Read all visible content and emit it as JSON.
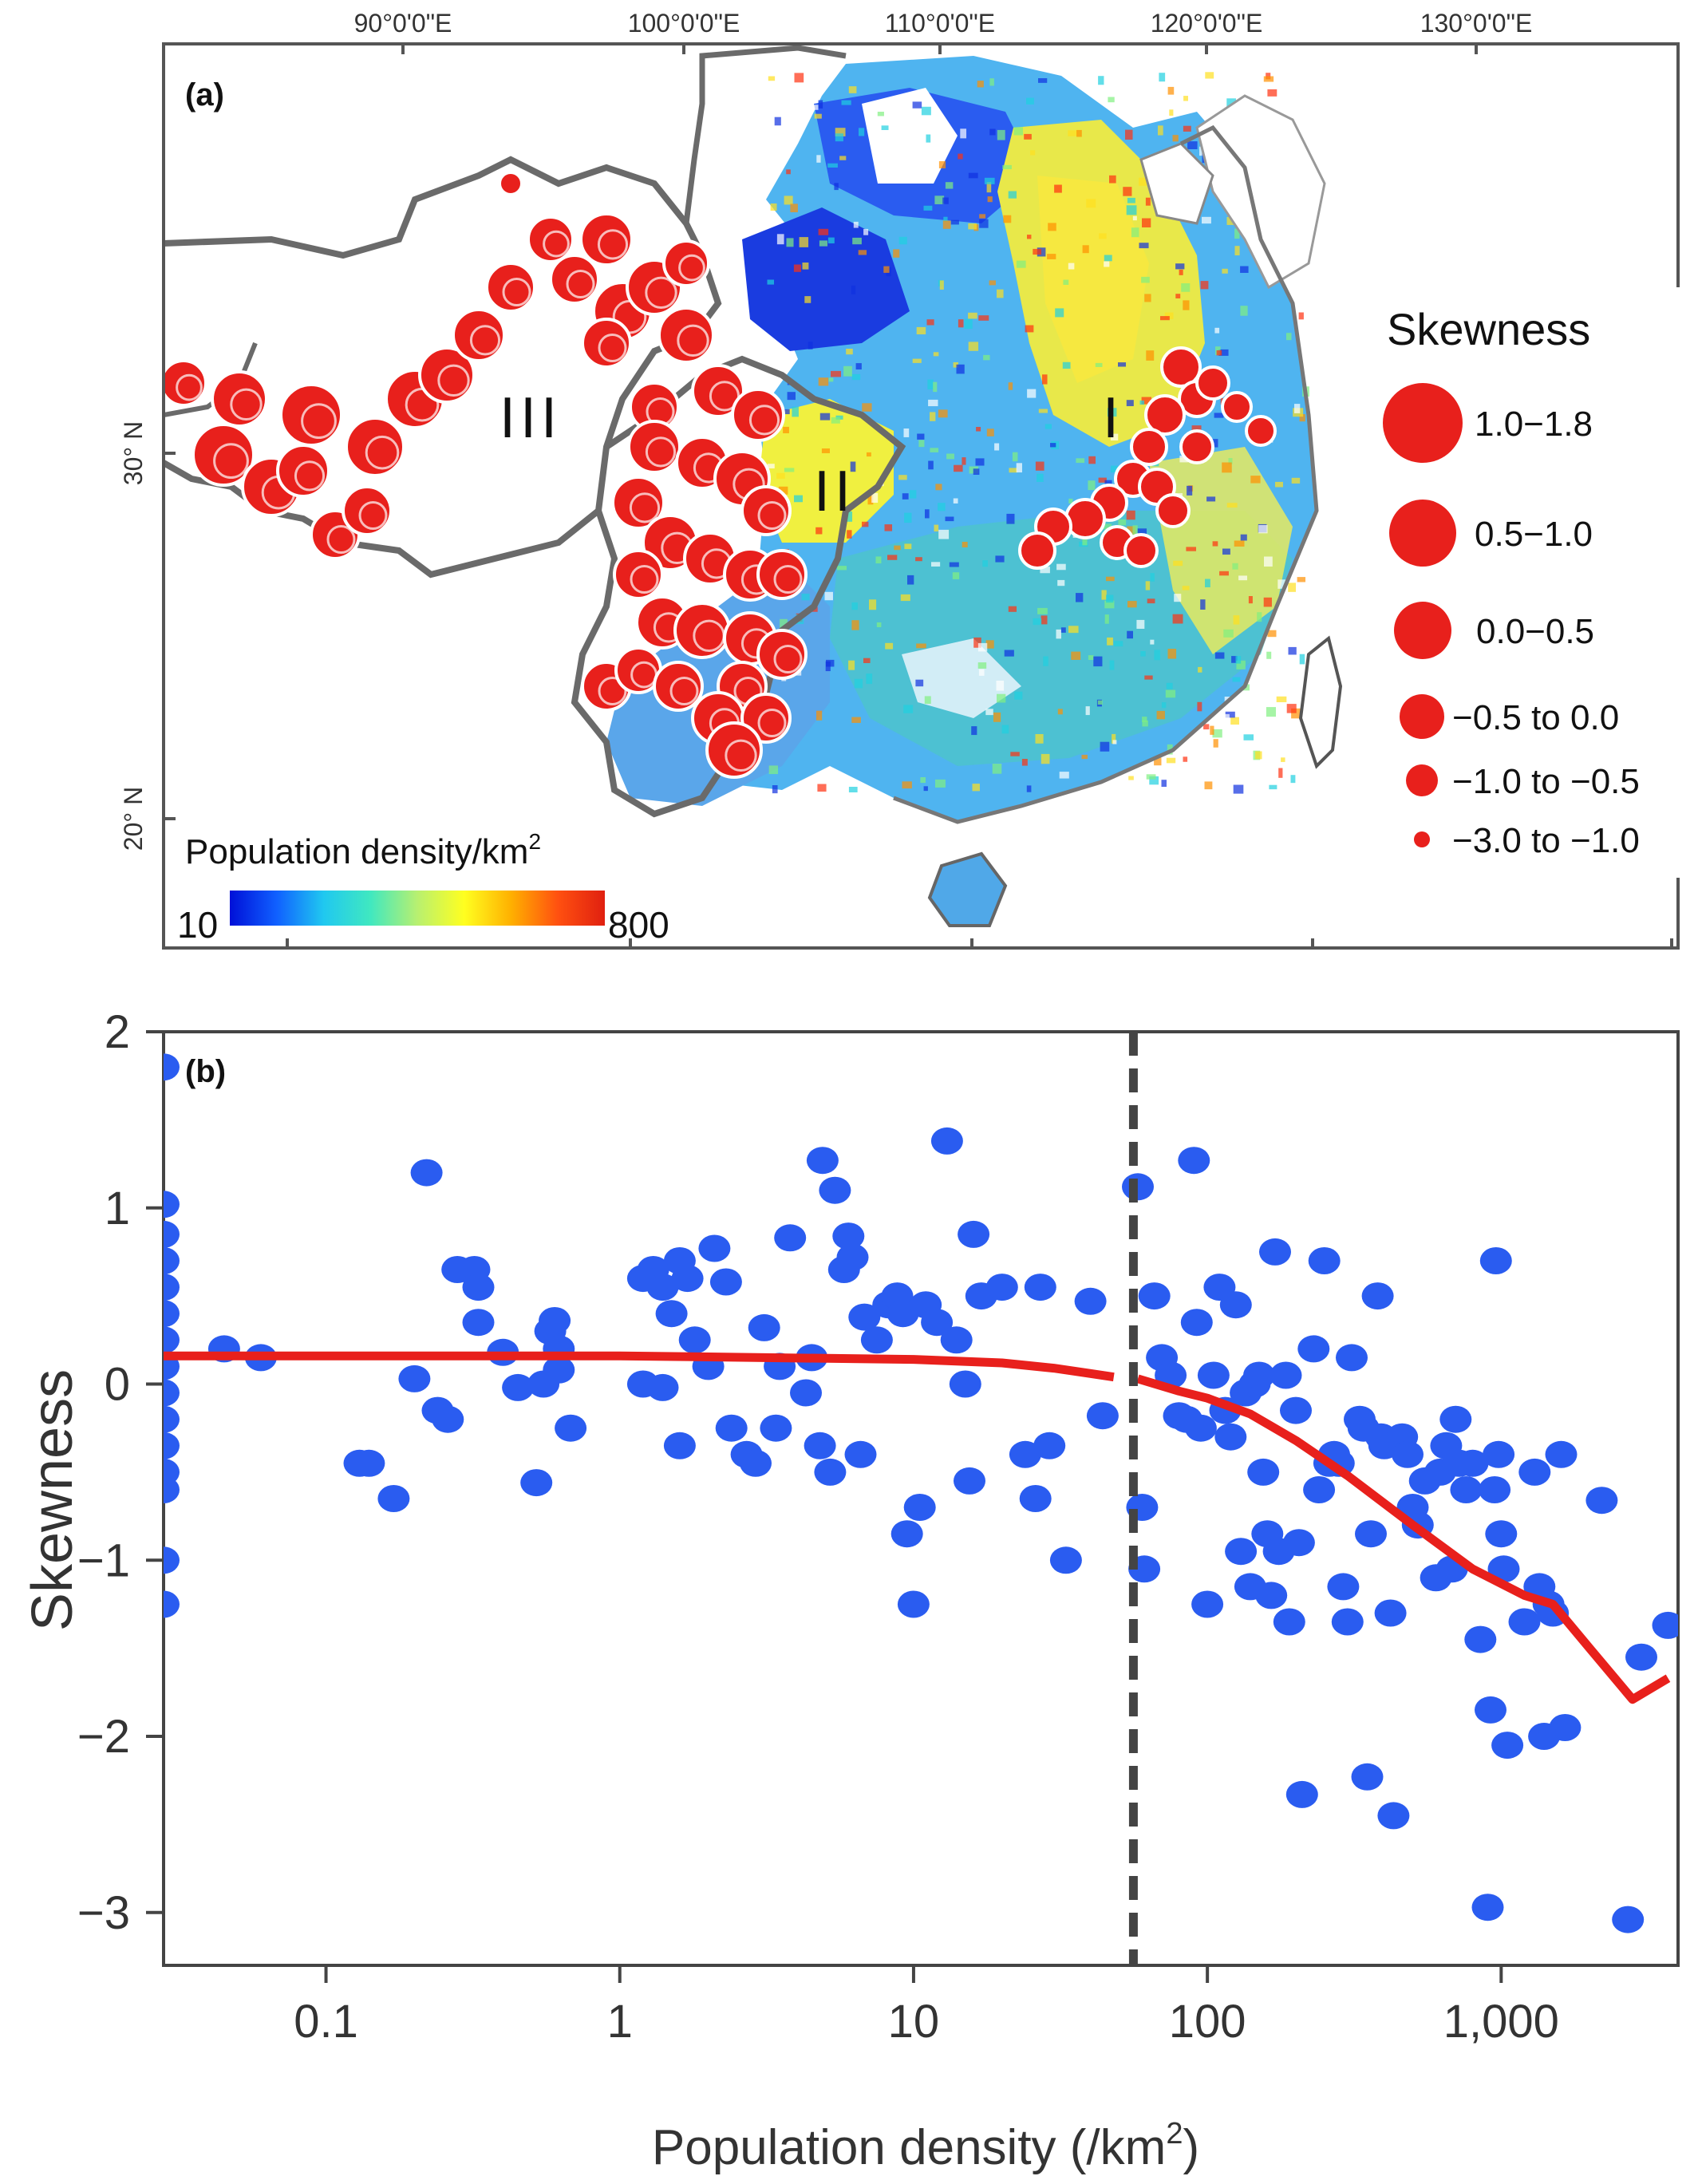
{
  "panel_a": {
    "label": "(a)",
    "lon_labels": [
      "90°0'0\"E",
      "100°0'0\"E",
      "110°0'0\"E",
      "120°0'0\"E",
      "130°0'0\"E"
    ],
    "lat_labels": [
      "30° N",
      "20° N"
    ],
    "region_labels": [
      "III",
      "II",
      "I"
    ],
    "colorbar": {
      "title": "Population density/km",
      "title_sup": "2",
      "min_label": "10",
      "max_label": "800",
      "colors": [
        "#0010d8",
        "#1060ff",
        "#20c8f0",
        "#40e8c0",
        "#b8f070",
        "#ffff20",
        "#ffb000",
        "#ff5010",
        "#e02010"
      ]
    },
    "legend": {
      "title": "Skewness",
      "entries": [
        "1.0−1.8",
        "0.5−1.0",
        "0.0−0.5",
        "−0.5 to  0.0",
        "−1.0 to −0.5",
        "−3.0 to −1.0"
      ]
    },
    "marker_color": "#e8201c"
  },
  "chart_data": {
    "type": "scatter",
    "label": "(b)",
    "xlabel": "Population density (/km",
    "xlabel_sup": "2",
    "xlabel_close": ")",
    "ylabel": "Skewness",
    "x_scale": "log",
    "xlim": [
      0.028,
      4000
    ],
    "ylim": [
      -3.3,
      2
    ],
    "x_tick_values": [
      0.1,
      1,
      10,
      100,
      1000
    ],
    "x_tick_labels": [
      "0.1",
      "1",
      "10",
      "100",
      "1,000"
    ],
    "y_tick_values": [
      2,
      1,
      0,
      -1,
      -2,
      -3
    ],
    "y_tick_labels": [
      "2",
      "1",
      "0",
      "−1",
      "−2",
      "−3"
    ],
    "threshold_x": 56,
    "point_color": "#2a5cf0",
    "line_color": "#e8201c",
    "grid": false,
    "points": [
      [
        0.028,
        1.8
      ],
      [
        0.028,
        1.02
      ],
      [
        0.028,
        0.85
      ],
      [
        0.028,
        0.7
      ],
      [
        0.028,
        0.55
      ],
      [
        0.028,
        0.4
      ],
      [
        0.028,
        0.25
      ],
      [
        0.028,
        0.1
      ],
      [
        0.028,
        -0.05
      ],
      [
        0.028,
        -0.2
      ],
      [
        0.028,
        -0.35
      ],
      [
        0.028,
        -0.5
      ],
      [
        0.028,
        -0.6
      ],
      [
        0.028,
        -1.0
      ],
      [
        0.028,
        -1.25
      ],
      [
        0.045,
        0.2
      ],
      [
        0.06,
        0.15
      ],
      [
        0.13,
        -0.45
      ],
      [
        0.14,
        -0.45
      ],
      [
        0.17,
        -0.65
      ],
      [
        0.22,
        1.2
      ],
      [
        0.2,
        0.03
      ],
      [
        0.24,
        -0.15
      ],
      [
        0.26,
        -0.2
      ],
      [
        0.28,
        0.65
      ],
      [
        0.32,
        0.65
      ],
      [
        0.33,
        0.55
      ],
      [
        0.33,
        0.35
      ],
      [
        0.4,
        0.18
      ],
      [
        0.45,
        -0.02
      ],
      [
        0.52,
        -0.56
      ],
      [
        0.55,
        0.0
      ],
      [
        0.58,
        0.3
      ],
      [
        0.6,
        0.36
      ],
      [
        0.62,
        0.2
      ],
      [
        0.62,
        0.08
      ],
      [
        0.68,
        -0.25
      ],
      [
        1.2,
        0.6
      ],
      [
        1.3,
        0.65
      ],
      [
        1.4,
        0.55
      ],
      [
        1.5,
        0.4
      ],
      [
        1.6,
        0.7
      ],
      [
        1.7,
        0.6
      ],
      [
        1.2,
        0.0
      ],
      [
        1.4,
        -0.02
      ],
      [
        1.6,
        -0.35
      ],
      [
        1.8,
        0.25
      ],
      [
        2.0,
        0.1
      ],
      [
        2.1,
        0.77
      ],
      [
        2.3,
        0.58
      ],
      [
        2.4,
        -0.25
      ],
      [
        2.7,
        -0.4
      ],
      [
        2.9,
        -0.45
      ],
      [
        3.1,
        0.32
      ],
      [
        3.4,
        -0.25
      ],
      [
        3.5,
        0.1
      ],
      [
        3.8,
        0.83
      ],
      [
        4.3,
        -0.05
      ],
      [
        4.5,
        0.15
      ],
      [
        4.8,
        -0.35
      ],
      [
        4.9,
        1.27
      ],
      [
        5.2,
        -0.5
      ],
      [
        5.4,
        1.1
      ],
      [
        5.8,
        0.65
      ],
      [
        6.0,
        0.84
      ],
      [
        6.2,
        0.72
      ],
      [
        6.6,
        -0.4
      ],
      [
        6.8,
        0.38
      ],
      [
        7.5,
        0.25
      ],
      [
        8.2,
        0.45
      ],
      [
        8.8,
        0.5
      ],
      [
        9.2,
        0.4
      ],
      [
        9.5,
        -0.85
      ],
      [
        10,
        -1.25
      ],
      [
        10.5,
        -0.7
      ],
      [
        11,
        0.45
      ],
      [
        12,
        0.35
      ],
      [
        13,
        1.38
      ],
      [
        14,
        0.25
      ],
      [
        15,
        0.0
      ],
      [
        15.5,
        -0.55
      ],
      [
        16,
        0.85
      ],
      [
        17,
        0.5
      ],
      [
        20,
        0.55
      ],
      [
        24,
        -0.4
      ],
      [
        26,
        -0.65
      ],
      [
        27,
        0.55
      ],
      [
        29,
        -0.35
      ],
      [
        33,
        -1.0
      ],
      [
        40,
        0.47
      ],
      [
        44,
        -0.18
      ],
      [
        58,
        1.12
      ],
      [
        60,
        -0.7
      ],
      [
        61,
        -1.05
      ],
      [
        66,
        0.5
      ],
      [
        70,
        0.15
      ],
      [
        75,
        0.05
      ],
      [
        80,
        -0.18
      ],
      [
        85,
        -0.2
      ],
      [
        90,
        1.27
      ],
      [
        92,
        0.35
      ],
      [
        95,
        -0.25
      ],
      [
        100,
        -1.25
      ],
      [
        105,
        0.05
      ],
      [
        110,
        0.55
      ],
      [
        115,
        -0.15
      ],
      [
        120,
        -0.3
      ],
      [
        125,
        0.45
      ],
      [
        130,
        -0.95
      ],
      [
        135,
        -0.05
      ],
      [
        140,
        -1.15
      ],
      [
        145,
        0.0
      ],
      [
        150,
        0.05
      ],
      [
        155,
        -0.5
      ],
      [
        160,
        -0.85
      ],
      [
        165,
        -1.2
      ],
      [
        170,
        0.75
      ],
      [
        175,
        -0.95
      ],
      [
        185,
        0.05
      ],
      [
        190,
        -1.35
      ],
      [
        200,
        -0.15
      ],
      [
        205,
        -0.9
      ],
      [
        210,
        -2.33
      ],
      [
        230,
        0.2
      ],
      [
        240,
        -0.6
      ],
      [
        250,
        0.7
      ],
      [
        260,
        -0.45
      ],
      [
        270,
        -0.4
      ],
      [
        280,
        -0.45
      ],
      [
        290,
        -1.15
      ],
      [
        300,
        -1.35
      ],
      [
        310,
        0.15
      ],
      [
        330,
        -0.2
      ],
      [
        340,
        -0.25
      ],
      [
        350,
        -2.23
      ],
      [
        360,
        -0.85
      ],
      [
        380,
        0.5
      ],
      [
        390,
        -0.3
      ],
      [
        400,
        -0.35
      ],
      [
        420,
        -1.3
      ],
      [
        430,
        -2.45
      ],
      [
        460,
        -0.3
      ],
      [
        480,
        -0.4
      ],
      [
        500,
        -0.7
      ],
      [
        520,
        -0.8
      ],
      [
        550,
        -0.55
      ],
      [
        600,
        -1.1
      ],
      [
        620,
        -0.5
      ],
      [
        650,
        -0.35
      ],
      [
        680,
        -1.05
      ],
      [
        700,
        -0.2
      ],
      [
        720,
        -0.45
      ],
      [
        760,
        -0.6
      ],
      [
        800,
        -0.45
      ],
      [
        850,
        -1.45
      ],
      [
        900,
        -2.97
      ],
      [
        920,
        -1.85
      ],
      [
        950,
        -0.6
      ],
      [
        960,
        0.7
      ],
      [
        980,
        -0.4
      ],
      [
        1000,
        -0.85
      ],
      [
        1020,
        -1.05
      ],
      [
        1050,
        -2.05
      ],
      [
        1200,
        -1.35
      ],
      [
        1300,
        -0.5
      ],
      [
        1350,
        -1.15
      ],
      [
        1400,
        -2.0
      ],
      [
        1450,
        -1.25
      ],
      [
        1500,
        -1.3
      ],
      [
        1600,
        -0.4
      ],
      [
        1650,
        -1.95
      ],
      [
        2200,
        -0.66
      ],
      [
        2700,
        -3.04
      ],
      [
        3000,
        -1.55
      ],
      [
        3700,
        -1.37
      ]
    ],
    "trend_line": [
      [
        0.028,
        0.16
      ],
      [
        0.1,
        0.16
      ],
      [
        1,
        0.16
      ],
      [
        10,
        0.14
      ],
      [
        20,
        0.12
      ],
      [
        30,
        0.09
      ],
      [
        40,
        0.06
      ],
      [
        48,
        0.04
      ],
      [
        58,
        0.03
      ],
      [
        80,
        -0.04
      ],
      [
        100,
        -0.08
      ],
      [
        140,
        -0.17
      ],
      [
        200,
        -0.32
      ],
      [
        300,
        -0.52
      ],
      [
        500,
        -0.8
      ],
      [
        800,
        -1.05
      ],
      [
        1200,
        -1.2
      ],
      [
        1500,
        -1.25
      ],
      [
        2000,
        -1.5
      ],
      [
        2800,
        -1.79
      ],
      [
        3700,
        -1.67
      ]
    ]
  }
}
